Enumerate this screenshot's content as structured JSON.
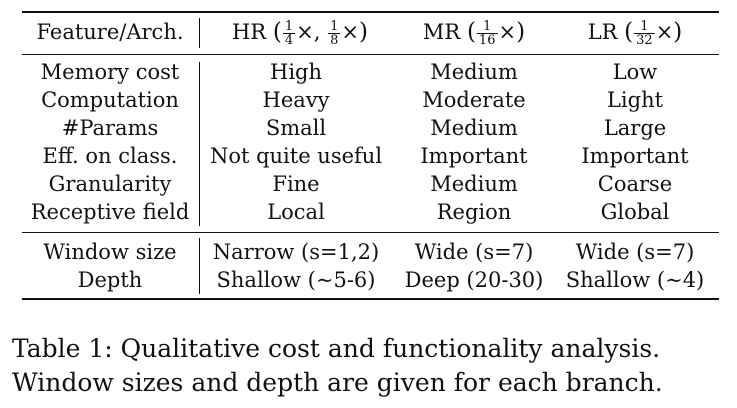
{
  "table": {
    "headers": {
      "feature": "Feature/Arch.",
      "hr": {
        "label": "HR",
        "f1_num": "1",
        "f1_den": "4",
        "f2_num": "1",
        "f2_den": "8",
        "times": "×"
      },
      "mr": {
        "label": "MR",
        "num": "1",
        "den": "16",
        "times": "×"
      },
      "lr": {
        "label": "LR",
        "num": "1",
        "den": "32",
        "times": "×"
      }
    },
    "rows": [
      [
        "Memory cost",
        "High",
        "Medium",
        "Low"
      ],
      [
        "Computation",
        "Heavy",
        "Moderate",
        "Light"
      ],
      [
        "#Params",
        "Small",
        "Medium",
        "Large"
      ],
      [
        "Eff. on class.",
        "Not quite useful",
        "Important",
        "Important"
      ],
      [
        "Granularity",
        "Fine",
        "Medium",
        "Coarse"
      ],
      [
        "Receptive field",
        "Local",
        "Region",
        "Global"
      ]
    ],
    "rows2": [
      [
        "Window size",
        "Narrow (s=1,2)",
        "Wide (s=7)",
        "Wide (s=7)"
      ],
      [
        "Depth",
        "Shallow (∼5-6)",
        "Deep (20-30)",
        "Shallow (∼4)"
      ]
    ]
  },
  "caption": "Table 1:  Qualitative cost and functionality analysis. Window sizes and depth are given for each branch."
}
